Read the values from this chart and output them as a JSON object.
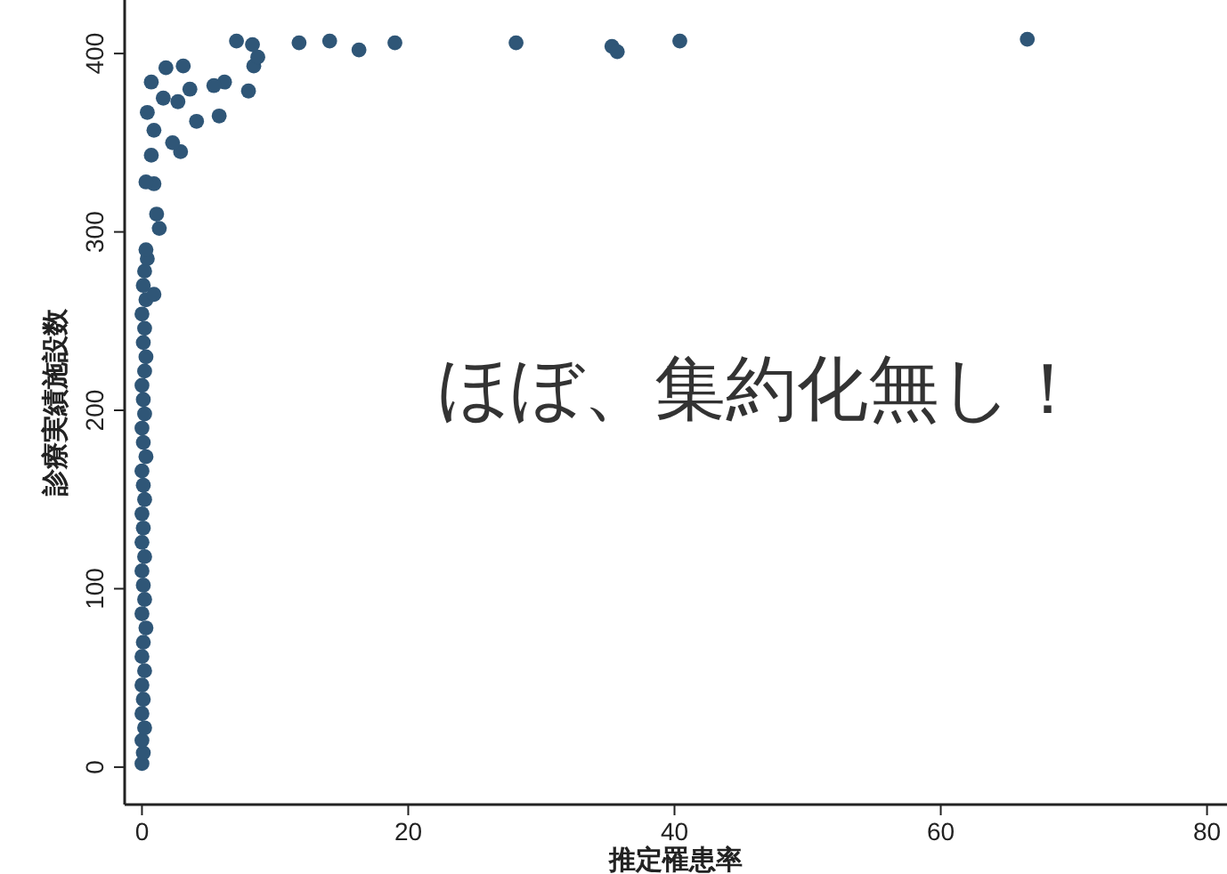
{
  "chart_data": {
    "type": "scatter",
    "xlabel": "推定罹患率",
    "ylabel": "診療実績施設数",
    "annotations": [
      {
        "text": "ほぼ、集約化無し！"
      }
    ],
    "xlim": [
      -1.3,
      81.5
    ],
    "ylim": [
      -21,
      430
    ],
    "xticks": [
      0,
      20,
      40,
      60,
      80
    ],
    "yticks": [
      0,
      100,
      200,
      300,
      400
    ],
    "marker": "circle",
    "series": [
      {
        "color": "#2f5677",
        "x": [
          0,
          0.1,
          0,
          0.2,
          0,
          0.1,
          0,
          0.2,
          0,
          0.1,
          0.3,
          0,
          0.2,
          0.1,
          0,
          0.2,
          0,
          0.1,
          0,
          0.2,
          0.1,
          0,
          0.3,
          0.1,
          0,
          0.2,
          0.1,
          0,
          0.2,
          0.3,
          0.1,
          0.2,
          0,
          0.3,
          0.1,
          0.2,
          0.4,
          0.9,
          0.3,
          1.3,
          1.1,
          0.9,
          0.3,
          0.7,
          2.9,
          2.3,
          0.9,
          0.4,
          1.6,
          2.7,
          3.6,
          0.7,
          3.1,
          1.8,
          4.1,
          5.8,
          6.2,
          5.4,
          8.0,
          8.4,
          8.7,
          8.3,
          7.1,
          11.8,
          14.1,
          16.3,
          19.0,
          28.1,
          35.3,
          35.7,
          40.4,
          66.5
        ],
        "values": [
          2,
          8,
          15,
          22,
          30,
          38,
          46,
          54,
          62,
          70,
          78,
          86,
          94,
          102,
          110,
          118,
          126,
          134,
          142,
          150,
          158,
          166,
          174,
          182,
          190,
          198,
          206,
          214,
          222,
          230,
          238,
          246,
          254,
          262,
          270,
          278,
          285,
          265,
          290,
          302,
          310,
          327,
          328,
          343,
          345,
          350,
          357,
          367,
          375,
          373,
          380,
          384,
          393,
          392,
          362,
          365,
          384,
          382,
          379,
          393,
          398,
          405,
          407,
          406,
          407,
          402,
          406,
          406,
          404,
          401,
          407,
          408
        ]
      }
    ]
  }
}
